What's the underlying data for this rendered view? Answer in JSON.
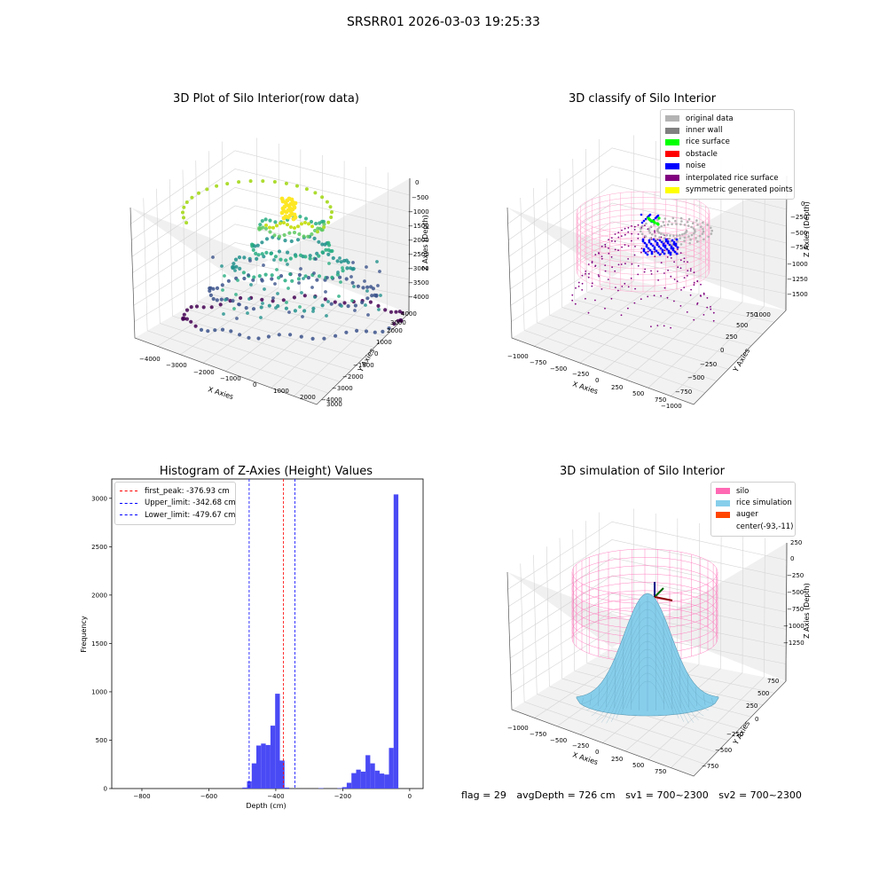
{
  "figure": {
    "title": "SRSRR01 2026-03-03 19:25:33"
  },
  "panels": {
    "raw": {
      "title": "3D Plot of Silo Interior(row data)",
      "xlabel": "X Axies",
      "ylabel": "Y Axies",
      "zlabel": "Z Axies (Depth)",
      "xticks": [
        "−4000",
        "−3000",
        "−2000",
        "−1000",
        "0",
        "1000",
        "2000",
        "3000"
      ],
      "yticks": [
        "−4000",
        "−3000",
        "−2000",
        "−1000",
        "0",
        "1000",
        "2000",
        "3000",
        "4000"
      ],
      "zticks": [
        "0",
        "−500",
        "−1000",
        "−1500",
        "−2000",
        "−2500",
        "−3000",
        "−3500",
        "−4000"
      ]
    },
    "classify": {
      "title": "3D classify of Silo Interior",
      "xlabel": "X Axies",
      "ylabel": "Y Axies",
      "zlabel": "Z Axies (Depth)",
      "xticks": [
        "−1000",
        "−750",
        "−500",
        "−250",
        "0",
        "250",
        "500",
        "750"
      ],
      "yticks": [
        "−1000",
        "−750",
        "−500",
        "−250",
        "0",
        "250",
        "500",
        "750",
        "1000"
      ],
      "zticks": [
        "0",
        "−250",
        "−500",
        "−750",
        "−1000",
        "−1250",
        "−1500"
      ],
      "legend": [
        {
          "label": "original data",
          "color": "#b3b3b3"
        },
        {
          "label": "inner wall",
          "color": "#808080"
        },
        {
          "label": "rice surface",
          "color": "#00ff00"
        },
        {
          "label": "obstacle",
          "color": "#ff0000"
        },
        {
          "label": "noise",
          "color": "#0000ff"
        },
        {
          "label": "interpolated rice surface",
          "color": "#800080"
        },
        {
          "label": "symmetric generated points",
          "color": "#ffff00"
        }
      ]
    },
    "histogram": {
      "title": "Histogram of Z-Axies (Height) Values",
      "xlabel": "Depth (cm)",
      "ylabel": "Frequency",
      "legend": [
        {
          "label": "first_peak: -376.93 cm",
          "color": "#ff0000"
        },
        {
          "label": "Upper_limit: -342.68 cm",
          "color": "#0000ff"
        },
        {
          "label": "Lower_limit: -479.67 cm",
          "color": "#0000ff"
        }
      ]
    },
    "simulation": {
      "title": "3D simulation of Silo Interior",
      "xlabel": "X Axies",
      "ylabel": "Y Axies",
      "zlabel": "Z Axies (Depth)",
      "xticks": [
        "−1000",
        "−750",
        "−500",
        "−250",
        "0",
        "250",
        "500",
        "750"
      ],
      "yticks": [
        "−750",
        "−500",
        "−250",
        "0",
        "250",
        "500",
        "750"
      ],
      "zticks": [
        "250",
        "0",
        "−250",
        "−500",
        "−750",
        "−1000",
        "−1250"
      ],
      "legend": [
        {
          "label": "silo",
          "color": "#ff69b4"
        },
        {
          "label": "rice simulation",
          "color": "#87ceeb"
        },
        {
          "label": "auger",
          "color": "#ff4500"
        },
        {
          "label": "center(-93,-11)",
          "color": ""
        }
      ]
    }
  },
  "status": {
    "flag": "flag = 29",
    "avg_depth": "avgDepth = 726 cm",
    "sv1": "sv1 = 700~2300",
    "sv2": "sv2 = 700~2300"
  },
  "chart_data": [
    {
      "type": "scatter",
      "title": "3D Plot of Silo Interior(row data)",
      "xlabel": "X Axies",
      "ylabel": "Y Axies",
      "zlabel": "Z Axies (Depth)",
      "xlim": [
        -4500,
        3300
      ],
      "ylim": [
        -4300,
        4300
      ],
      "zlim": [
        -4300,
        300
      ],
      "grid": true,
      "colormap": "viridis"
    },
    {
      "type": "scatter",
      "title": "3D classify of Silo Interior",
      "xlabel": "X Axies",
      "ylabel": "Y Axies",
      "zlabel": "Z Axies (Depth)",
      "xlim": [
        -1100,
        850
      ],
      "ylim": [
        -1050,
        1050
      ],
      "zlim": [
        -1600,
        100
      ],
      "grid": true,
      "legend": "top-right"
    },
    {
      "type": "bar",
      "title": "Histogram of Z-Axies (Height) Values",
      "xlabel": "Depth (cm)",
      "ylabel": "Frequency",
      "xlim": [
        -890,
        40
      ],
      "ylim": [
        0,
        3200
      ],
      "xticks": [
        -800,
        -600,
        -400,
        -200,
        0
      ],
      "yticks": [
        0,
        500,
        1000,
        1500,
        2000,
        2500,
        3000
      ],
      "bin_width": 14,
      "bins": [
        {
          "x": -500,
          "count": 10
        },
        {
          "x": -486,
          "count": 75
        },
        {
          "x": -472,
          "count": 260
        },
        {
          "x": -458,
          "count": 445
        },
        {
          "x": -444,
          "count": 465
        },
        {
          "x": -430,
          "count": 450
        },
        {
          "x": -416,
          "count": 650
        },
        {
          "x": -402,
          "count": 980
        },
        {
          "x": -388,
          "count": 290
        },
        {
          "x": -374,
          "count": 10
        },
        {
          "x": -272,
          "count": 5
        },
        {
          "x": -216,
          "count": 5
        },
        {
          "x": -202,
          "count": 15
        },
        {
          "x": -188,
          "count": 60
        },
        {
          "x": -174,
          "count": 160
        },
        {
          "x": -160,
          "count": 195
        },
        {
          "x": -146,
          "count": 175
        },
        {
          "x": -132,
          "count": 345
        },
        {
          "x": -118,
          "count": 260
        },
        {
          "x": -104,
          "count": 185
        },
        {
          "x": -90,
          "count": 155
        },
        {
          "x": -76,
          "count": 145
        },
        {
          "x": -62,
          "count": 420
        },
        {
          "x": -48,
          "count": 3040
        }
      ],
      "vlines": [
        {
          "label": "first_peak: -376.93 cm",
          "x": -376.93,
          "color": "#ff0000"
        },
        {
          "label": "Upper_limit: -342.68 cm",
          "x": -342.68,
          "color": "#0000ff"
        },
        {
          "label": "Lower_limit: -479.67 cm",
          "x": -479.67,
          "color": "#0000ff"
        }
      ],
      "legend": "top-left",
      "bar_color": "#4a4af5"
    },
    {
      "type": "surface",
      "title": "3D simulation of Silo Interior",
      "xlabel": "X Axies",
      "ylabel": "Y Axies",
      "zlabel": "Z Axies (Depth)",
      "xlim": [
        -1100,
        850
      ],
      "ylim": [
        -850,
        850
      ],
      "zlim": [
        -1400,
        400
      ],
      "grid": true,
      "legend": "top-right",
      "center": [
        -93,
        -11
      ]
    }
  ]
}
